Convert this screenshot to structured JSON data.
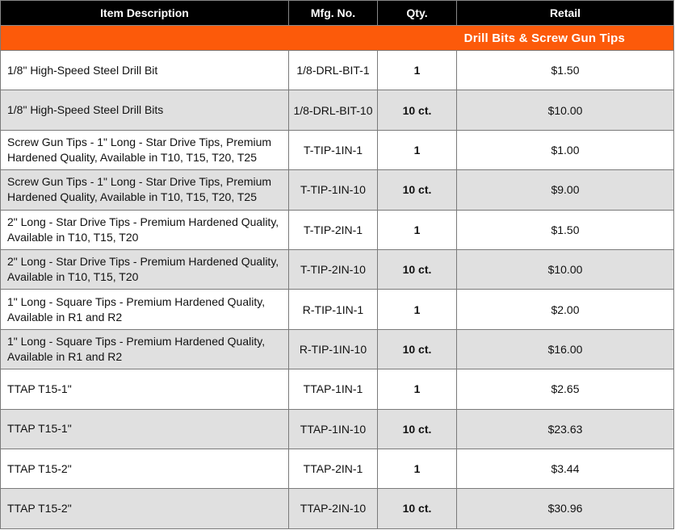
{
  "table": {
    "headers": [
      "Item Description",
      "Mfg. No.",
      "Qty.",
      "Retail"
    ],
    "section_title": "Drill Bits & Screw Gun Tips",
    "colors": {
      "header_bg": "#000000",
      "section_bg": "#fc5a0a",
      "alt_row_bg": "#e0e0e0"
    },
    "rows": [
      {
        "description": "1/8\" High-Speed Steel Drill Bit",
        "mfg": "1/8-DRL-BIT-1",
        "qty": "1",
        "retail": "$1.50"
      },
      {
        "description": "1/8\" High-Speed Steel Drill Bits",
        "mfg": "1/8-DRL-BIT-10",
        "qty": "10 ct.",
        "retail": "$10.00"
      },
      {
        "description": "Screw Gun Tips - 1\" Long - Star Drive Tips, Premium Hardened Quality, Available in T10, T15, T20, T25",
        "mfg": "T-TIP-1IN-1",
        "qty": "1",
        "retail": "$1.00"
      },
      {
        "description": "Screw Gun Tips - 1\" Long - Star Drive Tips, Premium Hardened Quality, Available in T10, T15, T20, T25",
        "mfg": "T-TIP-1IN-10",
        "qty": "10 ct.",
        "retail": "$9.00"
      },
      {
        "description": "2\" Long - Star Drive Tips - Premium Hardened Quality, Available in T10, T15, T20",
        "mfg": "T-TIP-2IN-1",
        "qty": "1",
        "retail": "$1.50"
      },
      {
        "description": "2\" Long - Star Drive Tips - Premium Hardened Quality, Available in T10, T15, T20",
        "mfg": "T-TIP-2IN-10",
        "qty": "10 ct.",
        "retail": "$10.00"
      },
      {
        "description": "1\" Long - Square Tips - Premium Hardened Quality, Available in R1 and R2",
        "mfg": "R-TIP-1IN-1",
        "qty": "1",
        "retail": "$2.00"
      },
      {
        "description": "1\" Long - Square Tips - Premium Hardened Quality, Available in R1 and R2",
        "mfg": "R-TIP-1IN-10",
        "qty": "10 ct.",
        "retail": "$16.00"
      },
      {
        "description": "TTAP T15-1\"",
        "mfg": "TTAP-1IN-1",
        "qty": "1",
        "retail": "$2.65"
      },
      {
        "description": "TTAP T15-1\"",
        "mfg": "TTAP-1IN-10",
        "qty": "10 ct.",
        "retail": "$23.63"
      },
      {
        "description": "TTAP T15-2\"",
        "mfg": "TTAP-2IN-1",
        "qty": "1",
        "retail": "$3.44"
      },
      {
        "description": "TTAP T15-2\"",
        "mfg": "TTAP-2IN-10",
        "qty": "10 ct.",
        "retail": "$30.96"
      }
    ]
  }
}
